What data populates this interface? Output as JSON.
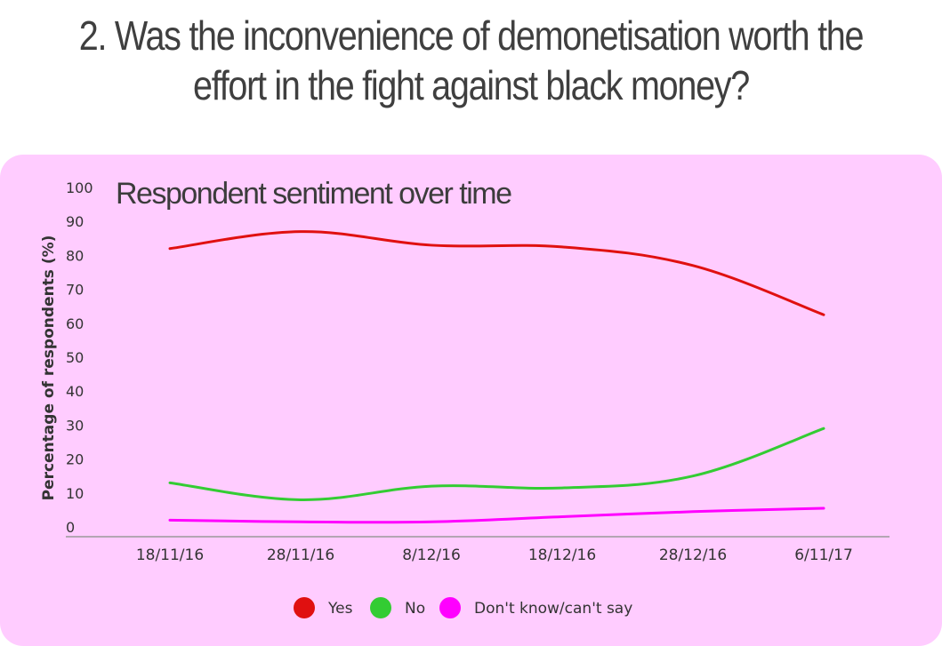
{
  "page": {
    "title_line1": "2. Was the inconvenience of demonetisation worth the",
    "title_line2": "effort in the fight against black money?"
  },
  "chart_data": {
    "type": "line",
    "title": "Respondent sentiment over time",
    "xlabel": "",
    "ylabel": "Percentage of respondents (%)",
    "x": [
      "18/11/16",
      "28/11/16",
      "8/12/16",
      "18/12/16",
      "28/12/16",
      "6/11/17"
    ],
    "ylim": [
      0,
      100
    ],
    "yticks": [
      0,
      10,
      20,
      30,
      40,
      50,
      60,
      70,
      80,
      90,
      100
    ],
    "grid": false,
    "legend_position": "bottom",
    "series": [
      {
        "name": "Yes",
        "color": "#e01010",
        "values": [
          82,
          87,
          83,
          82.5,
          77,
          62.5
        ]
      },
      {
        "name": "No",
        "color": "#33cc33",
        "values": [
          13,
          8,
          12,
          11.5,
          15,
          29
        ]
      },
      {
        "name": "Don't know/can't say",
        "color": "#ff00ff",
        "values": [
          2,
          1.5,
          1.5,
          3,
          4.5,
          5.5
        ]
      }
    ]
  }
}
